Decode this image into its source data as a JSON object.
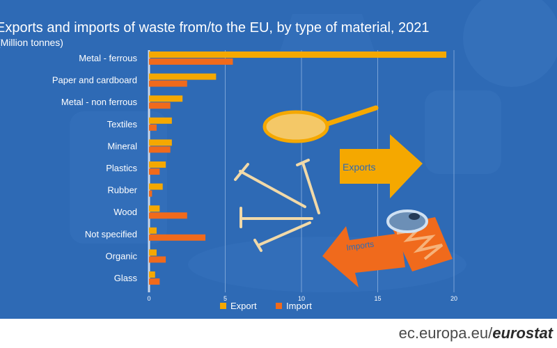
{
  "chart_data": {
    "type": "bar",
    "orientation": "horizontal",
    "title": "Exports and imports of waste from/to the EU, by type of material, 2021",
    "subtitle": "(Million tonnes)",
    "categories": [
      "Metal - ferrous",
      "Paper and cardboard",
      "Metal - non ferrous",
      "Textiles",
      "Mineral",
      "Plastics",
      "Rubber",
      "Wood",
      "Not specified",
      "Organic",
      "Glass"
    ],
    "series": [
      {
        "name": "Export",
        "color": "#f5a800",
        "values": [
          19.5,
          4.4,
          2.2,
          1.5,
          1.5,
          1.1,
          0.9,
          0.7,
          0.5,
          0.5,
          0.4
        ]
      },
      {
        "name": "Import",
        "color": "#f06a1c",
        "values": [
          5.5,
          2.5,
          1.4,
          0.5,
          1.4,
          0.7,
          0.2,
          2.5,
          3.7,
          1.1,
          0.7
        ]
      }
    ],
    "xlim": [
      0,
      20
    ],
    "xticks": [
      0,
      5,
      10,
      15,
      20
    ],
    "grid": true,
    "legend": "bottom"
  },
  "annotations": {
    "exports_label": "Exports",
    "imports_label": "Imports"
  },
  "footer": {
    "site": "ec.europa.eu/",
    "brand": "eurostat"
  }
}
